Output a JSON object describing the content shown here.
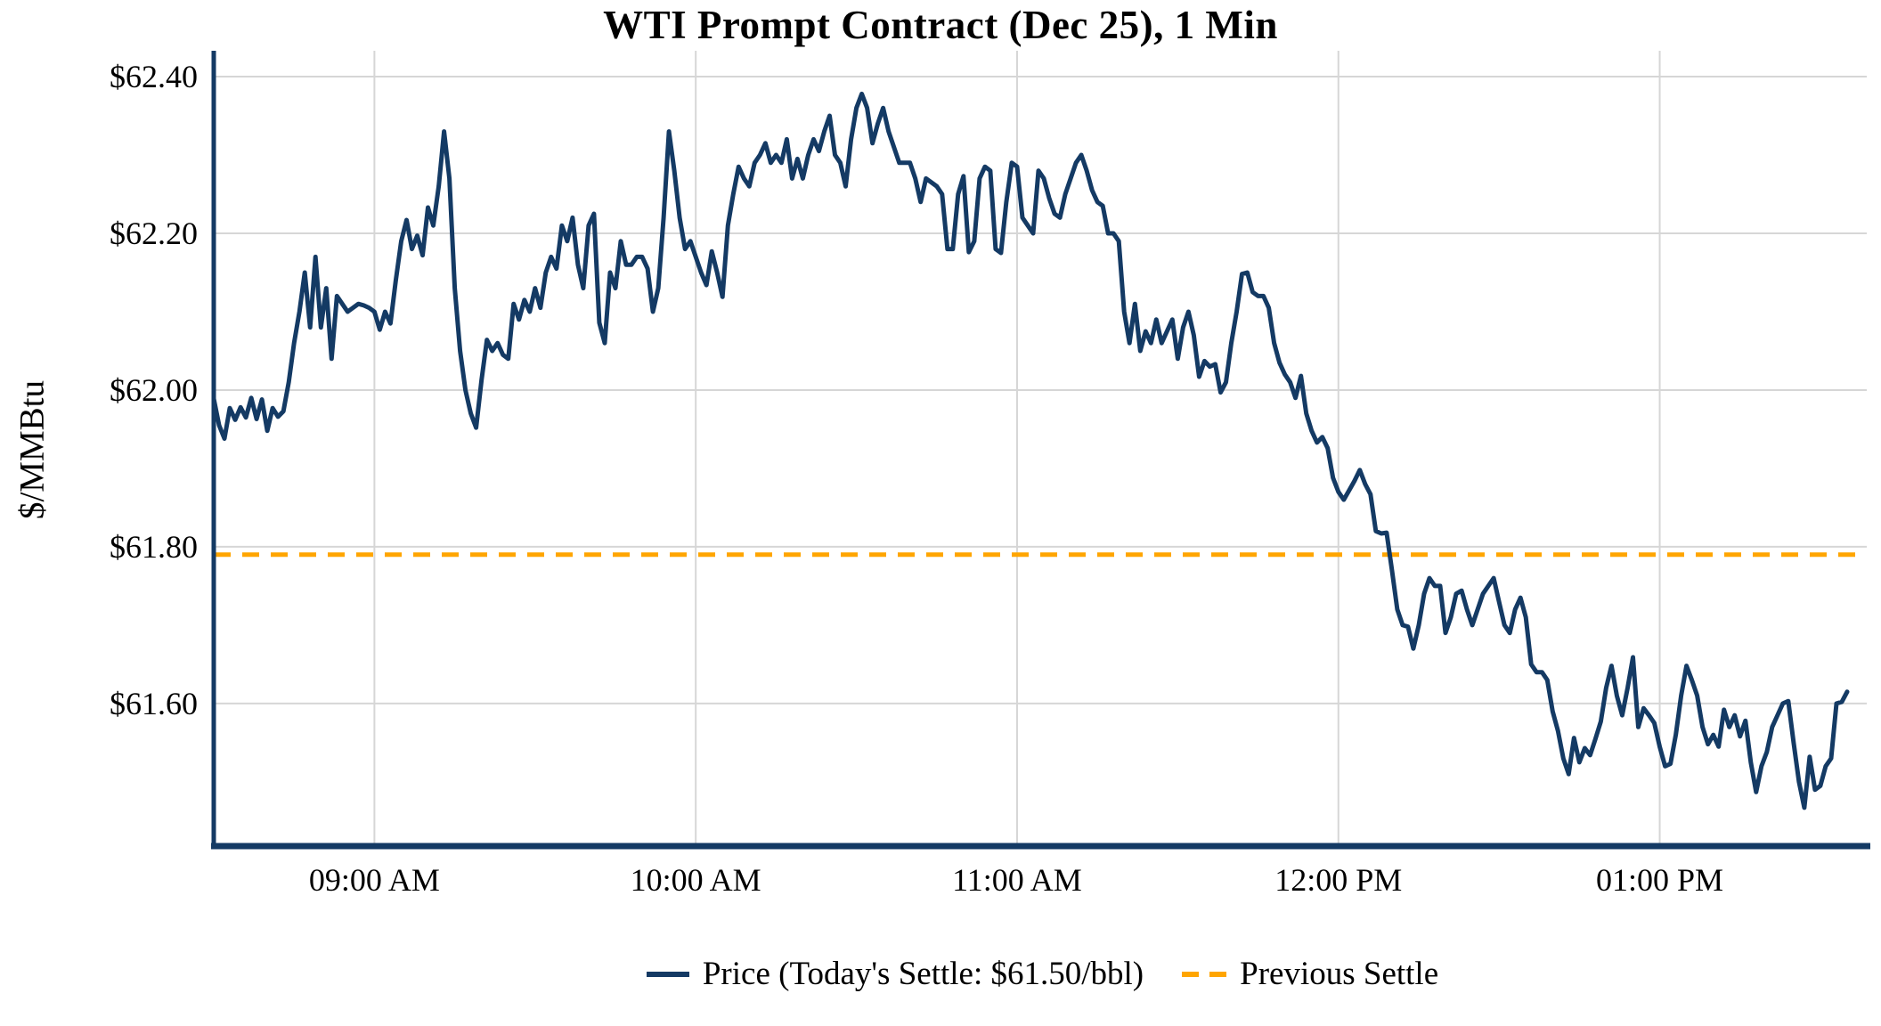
{
  "title": "WTI Prompt Contract (Dec 25), 1 Min",
  "y_axis": {
    "label": "$/MMBtu"
  },
  "legend": {
    "price_label": "Price (Today's Settle: $61.50/bbl)",
    "previous_settle_label": "Previous Settle"
  },
  "colors": {
    "price_line": "#143A64",
    "previous_settle_line": "#FFA500",
    "gridline": "#D6D6D6",
    "axis_spine": "#143A64",
    "text": "#000000"
  },
  "chart_data": {
    "type": "line",
    "title": "WTI Prompt Contract (Dec 25), 1 Min",
    "xlabel": "",
    "ylabel": "$/MMBtu",
    "x_start": "08:30 AM",
    "x_end": "01:35 PM",
    "interval_minutes": 1,
    "x_tick_labels": [
      "09:00 AM",
      "10:00 AM",
      "11:00 AM",
      "12:00 PM",
      "01:00 PM"
    ],
    "x_tick_minutes_from_start": [
      30,
      90,
      150,
      210,
      270
    ],
    "y_tick_labels": [
      "$62.40",
      "$62.20",
      "$62.00",
      "$61.80",
      "$61.60"
    ],
    "y_tick_values": [
      62.4,
      62.2,
      62.0,
      61.8,
      61.6
    ],
    "ylim": [
      61.418,
      62.433
    ],
    "grid": true,
    "legend_position": "bottom-center",
    "previous_settle": 61.79,
    "todays_settle": 61.5,
    "series": [
      {
        "name": "Price",
        "values": [
          61.989,
          61.955,
          61.938,
          61.977,
          61.962,
          61.978,
          61.965,
          61.99,
          61.963,
          61.988,
          61.948,
          61.977,
          61.966,
          61.973,
          62.01,
          62.06,
          62.1,
          62.15,
          62.08,
          62.17,
          62.08,
          62.13,
          62.04,
          62.12,
          62.11,
          62.1,
          62.105,
          62.11,
          62.108,
          62.105,
          62.1,
          62.077,
          62.1,
          62.085,
          62.14,
          62.19,
          62.217,
          62.18,
          62.197,
          62.172,
          62.233,
          62.21,
          62.26,
          62.33,
          62.27,
          62.13,
          62.05,
          62.0,
          61.97,
          61.952,
          62.013,
          62.064,
          62.05,
          62.06,
          62.045,
          62.04,
          62.11,
          62.09,
          62.115,
          62.1,
          62.13,
          62.105,
          62.15,
          62.17,
          62.155,
          62.21,
          62.19,
          62.22,
          62.16,
          62.13,
          62.21,
          62.225,
          62.086,
          62.06,
          62.15,
          62.13,
          62.19,
          62.16,
          62.16,
          62.17,
          62.17,
          62.155,
          62.1,
          62.13,
          62.22,
          62.33,
          62.28,
          62.22,
          62.18,
          62.19,
          62.17,
          62.15,
          62.134,
          62.177,
          62.15,
          62.119,
          62.21,
          62.25,
          62.285,
          62.27,
          62.26,
          62.29,
          62.3,
          62.315,
          62.29,
          62.3,
          62.29,
          62.32,
          62.27,
          62.295,
          62.27,
          62.3,
          62.32,
          62.305,
          62.33,
          62.35,
          62.3,
          62.29,
          62.26,
          62.32,
          62.36,
          62.378,
          62.36,
          62.315,
          62.34,
          62.36,
          62.33,
          62.31,
          62.29,
          62.29,
          62.29,
          62.27,
          62.24,
          62.27,
          62.265,
          62.26,
          62.25,
          62.18,
          62.18,
          62.25,
          62.273,
          62.176,
          62.19,
          62.27,
          62.285,
          62.28,
          62.18,
          62.175,
          62.24,
          62.29,
          62.285,
          62.22,
          62.21,
          62.2,
          62.28,
          62.27,
          62.245,
          62.225,
          62.22,
          62.25,
          62.27,
          62.29,
          62.3,
          62.28,
          62.255,
          62.24,
          62.235,
          62.2,
          62.2,
          62.19,
          62.1,
          62.06,
          62.11,
          62.05,
          62.075,
          62.06,
          62.09,
          62.06,
          62.075,
          62.09,
          62.04,
          62.08,
          62.1,
          62.07,
          62.017,
          62.037,
          62.03,
          62.033,
          61.997,
          62.01,
          62.06,
          62.1,
          62.148,
          62.15,
          62.125,
          62.12,
          62.12,
          62.105,
          62.06,
          62.035,
          62.02,
          62.01,
          61.99,
          62.018,
          61.97,
          61.948,
          61.933,
          61.94,
          61.926,
          61.888,
          61.87,
          61.86,
          61.872,
          61.884,
          61.898,
          61.88,
          61.867,
          61.82,
          61.817,
          61.818,
          61.77,
          61.72,
          61.7,
          61.698,
          61.67,
          61.7,
          61.74,
          61.76,
          61.75,
          61.75,
          61.69,
          61.71,
          61.74,
          61.744,
          61.72,
          61.7,
          61.72,
          61.74,
          61.75,
          61.76,
          61.73,
          61.7,
          61.69,
          61.72,
          61.735,
          61.71,
          61.65,
          61.64,
          61.64,
          61.63,
          61.59,
          61.565,
          61.53,
          61.51,
          61.556,
          61.525,
          61.543,
          61.534,
          61.555,
          61.577,
          61.62,
          61.648,
          61.61,
          61.585,
          61.62,
          61.659,
          61.57,
          61.594,
          61.585,
          61.575,
          61.545,
          61.52,
          61.523,
          61.56,
          61.61,
          61.648,
          61.63,
          61.61,
          61.57,
          61.548,
          61.56,
          61.545,
          61.592,
          61.57,
          61.585,
          61.558,
          61.578,
          61.525,
          61.487,
          61.52,
          61.538,
          61.57,
          61.585,
          61.6,
          61.603,
          61.55,
          61.5,
          61.467,
          61.532,
          61.49,
          61.495,
          61.52,
          61.53,
          61.6,
          61.602,
          61.615
        ]
      }
    ]
  }
}
